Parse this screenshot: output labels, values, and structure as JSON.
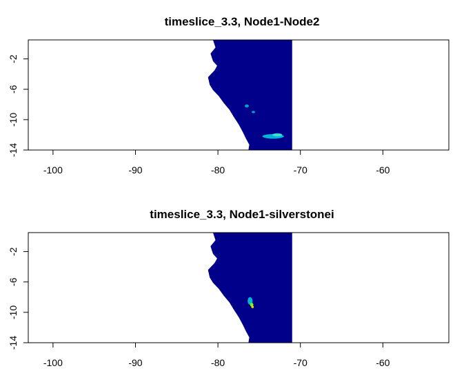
{
  "chart_data": [
    {
      "type": "heatmap",
      "title": "timeslice_3.3, Node1-Node2",
      "xlabel": "",
      "ylabel": "",
      "xlim": [
        -103,
        -52
      ],
      "ylim": [
        -14,
        0.5
      ],
      "x_ticks": [
        -100,
        -90,
        -80,
        -70,
        -60
      ],
      "x_tick_labels": [
        "-100",
        "-90",
        "-80",
        "-70",
        "-60"
      ],
      "y_ticks": [
        -2,
        -6,
        -10,
        -14
      ],
      "y_tick_labels": [
        "-2",
        "-6",
        "-10",
        "-14"
      ],
      "raster_extent": {
        "x": [
          -82,
          -71
        ],
        "y": [
          -14,
          0.5
        ]
      },
      "background_value_color": "#00008B",
      "highlights": [
        {
          "lon": -73.3,
          "lat": -12.2,
          "rx": 1.3,
          "ry": 0.3,
          "color": "#00B4D8"
        },
        {
          "lon": -72.8,
          "lat": -12.0,
          "rx": 0.6,
          "ry": 0.2,
          "color": "#40E0D0"
        },
        {
          "lon": -76.5,
          "lat": -8.2,
          "rx": 0.25,
          "ry": 0.2,
          "color": "#00A0C8"
        },
        {
          "lon": -75.7,
          "lat": -9.0,
          "rx": 0.2,
          "ry": 0.15,
          "color": "#00A0C8"
        }
      ]
    },
    {
      "type": "heatmap",
      "title": "timeslice_3.3, Node1-silverstonei",
      "xlabel": "",
      "ylabel": "",
      "xlim": [
        -103,
        -52
      ],
      "ylim": [
        -14,
        0.5
      ],
      "x_ticks": [
        -100,
        -90,
        -80,
        -70,
        -60
      ],
      "x_tick_labels": [
        "-100",
        "-90",
        "-80",
        "-70",
        "-60"
      ],
      "y_ticks": [
        -2,
        -6,
        -10,
        -14
      ],
      "y_tick_labels": [
        "-2",
        "-6",
        "-10",
        "-14"
      ],
      "raster_extent": {
        "x": [
          -82,
          -71
        ],
        "y": [
          -14,
          0.5
        ]
      },
      "background_value_color": "#00008B",
      "highlights": [
        {
          "lon": -76.1,
          "lat": -8.5,
          "rx": 0.3,
          "ry": 0.5,
          "color": "#00B4D8"
        },
        {
          "lon": -75.9,
          "lat": -9.0,
          "rx": 0.2,
          "ry": 0.25,
          "color": "#7CFC00"
        },
        {
          "lon": -75.8,
          "lat": -9.3,
          "rx": 0.15,
          "ry": 0.15,
          "color": "#FFD700"
        }
      ]
    }
  ]
}
